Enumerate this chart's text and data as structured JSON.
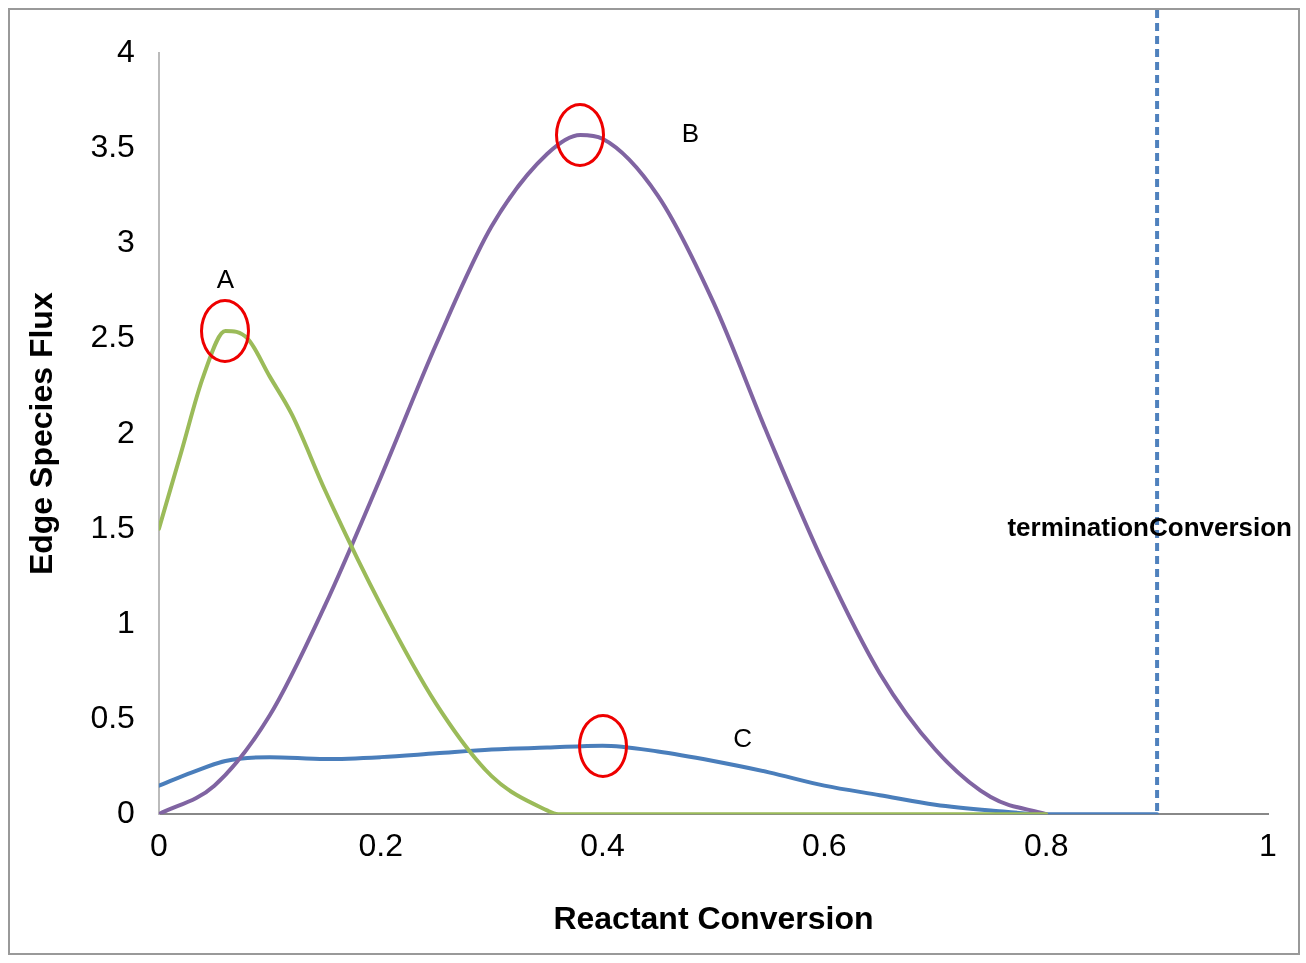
{
  "chart_data": {
    "type": "line",
    "xlabel": "Reactant Conversion",
    "ylabel": "Edge Species Flux",
    "xlim": [
      0,
      1
    ],
    "xticks": [
      0,
      0.2,
      0.4,
      0.6,
      0.8,
      1
    ],
    "ylim": [
      0,
      4
    ],
    "yticks": [
      0,
      0.5,
      1,
      1.5,
      2,
      2.5,
      3,
      3.5,
      4
    ],
    "grid": false,
    "legend": false,
    "marker": "none",
    "line_style": "solid",
    "series": [
      {
        "name": "A",
        "color": "#9bbb59",
        "x": [
          0,
          0.02,
          0.04,
          0.06,
          0.08,
          0.1,
          0.12,
          0.15,
          0.2,
          0.25,
          0.3,
          0.35,
          0.36,
          0.8
        ],
        "values": [
          1.5,
          1.9,
          2.3,
          2.54,
          2.5,
          2.3,
          2.1,
          1.7,
          1.1,
          0.58,
          0.2,
          0.02,
          0,
          0
        ]
      },
      {
        "name": "B",
        "color": "#8064a2",
        "x": [
          0,
          0.05,
          0.1,
          0.15,
          0.2,
          0.25,
          0.3,
          0.35,
          0.38,
          0.4,
          0.45,
          0.5,
          0.55,
          0.6,
          0.65,
          0.7,
          0.75,
          0.8
        ],
        "values": [
          0,
          0.15,
          0.52,
          1.1,
          1.77,
          2.47,
          3.09,
          3.47,
          3.57,
          3.55,
          3.25,
          2.69,
          1.98,
          1.31,
          0.74,
          0.34,
          0.09,
          0
        ]
      },
      {
        "name": "C",
        "color": "#4a7ebb",
        "x": [
          0,
          0.03,
          0.06,
          0.1,
          0.15,
          0.2,
          0.25,
          0.3,
          0.35,
          0.4,
          0.45,
          0.5,
          0.55,
          0.6,
          0.65,
          0.7,
          0.75,
          0.8,
          0.9
        ],
        "values": [
          0.15,
          0.22,
          0.28,
          0.3,
          0.29,
          0.3,
          0.32,
          0.34,
          0.35,
          0.36,
          0.33,
          0.28,
          0.22,
          0.15,
          0.1,
          0.05,
          0.02,
          0,
          0
        ]
      }
    ],
    "ref_lines": [
      {
        "axis": "x",
        "value": 0.9,
        "label": "terminationConversion",
        "color": "#4f81bd",
        "line_style": "dashed"
      }
    ]
  }
}
